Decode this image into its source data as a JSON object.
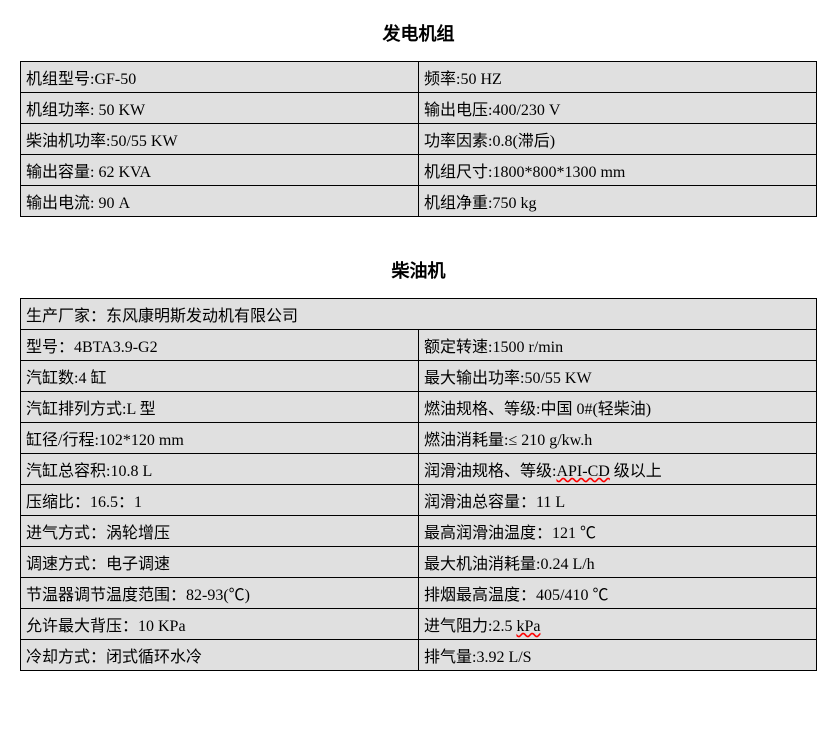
{
  "section1": {
    "title": "发电机组",
    "rows": [
      {
        "left": "机组型号:GF-50",
        "right": "频率:50 HZ"
      },
      {
        "left": "机组功率: 50 KW",
        "right": "输出电压:400/230 V"
      },
      {
        "left": "柴油机功率:50/55 KW",
        "right": "功率因素:0.8(滞后)"
      },
      {
        "left": "输出容量: 62 KVA",
        "right": "机组尺寸:1800*800*1300 mm"
      },
      {
        "left": "输出电流: 90 A",
        "right": "机组净重:750 kg"
      }
    ]
  },
  "section2": {
    "title": "柴油机",
    "header_row": "生产厂家：东风康明斯发动机有限公司",
    "rows": [
      {
        "left": "型号：4BTA3.9-G2",
        "right": "额定转速:1500 r/min"
      },
      {
        "left": "汽缸数:4  缸",
        "right": "最大输出功率:50/55 KW"
      },
      {
        "left": "汽缸排列方式:L  型",
        "right": "燃油规格、等级:中国 0#(轻柴油)"
      },
      {
        "left": "缸径/行程:102*120 mm",
        "right": "燃油消耗量:≤ 210 g/kw.h"
      },
      {
        "left": "汽缸总容积:10.8 L",
        "right_prefix": "润滑油规格、等级:",
        "right_underline": "API-CD",
        "right_suffix": " 级以上"
      },
      {
        "left": "压缩比：16.5：1",
        "right": "润滑油总容量：11 L"
      },
      {
        "left": "进气方式：涡轮增压",
        "right": "最高润滑油温度：121 ℃"
      },
      {
        "left": "调速方式：电子调速",
        "right": "最大机油消耗量:0.24 L/h"
      },
      {
        "left": "节温器调节温度范围：82-93(℃)",
        "right": "排烟最高温度：405/410 ℃"
      },
      {
        "left": "允许最大背压：10 KPa",
        "right_prefix": "进气阻力:2.5 ",
        "right_underline": "kPa",
        "right_suffix": ""
      },
      {
        "left": "冷却方式：闭式循环水冷",
        "right": "排气量:3.92 L/S"
      }
    ]
  },
  "styling": {
    "tableWidth": 797,
    "cellBg": "#e0e0e0",
    "borderColor": "#000000",
    "fontFamily": "SimSun",
    "fontSize": 16,
    "titleFontSize": 18,
    "underlineColor": "#ff0000"
  }
}
